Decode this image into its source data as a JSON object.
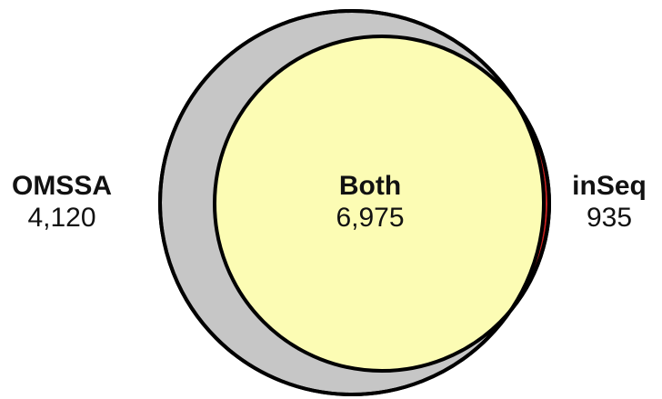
{
  "sets": {
    "left": {
      "label": "OMSSA",
      "count": "4,120",
      "color": "#c6c6c6"
    },
    "right": {
      "label": "inSeq",
      "count": "935",
      "color": "#c9201f"
    },
    "overlap": {
      "label": "Both",
      "count": "6,975",
      "color": "#fcfcb4"
    }
  },
  "outline_color": "#000000"
}
